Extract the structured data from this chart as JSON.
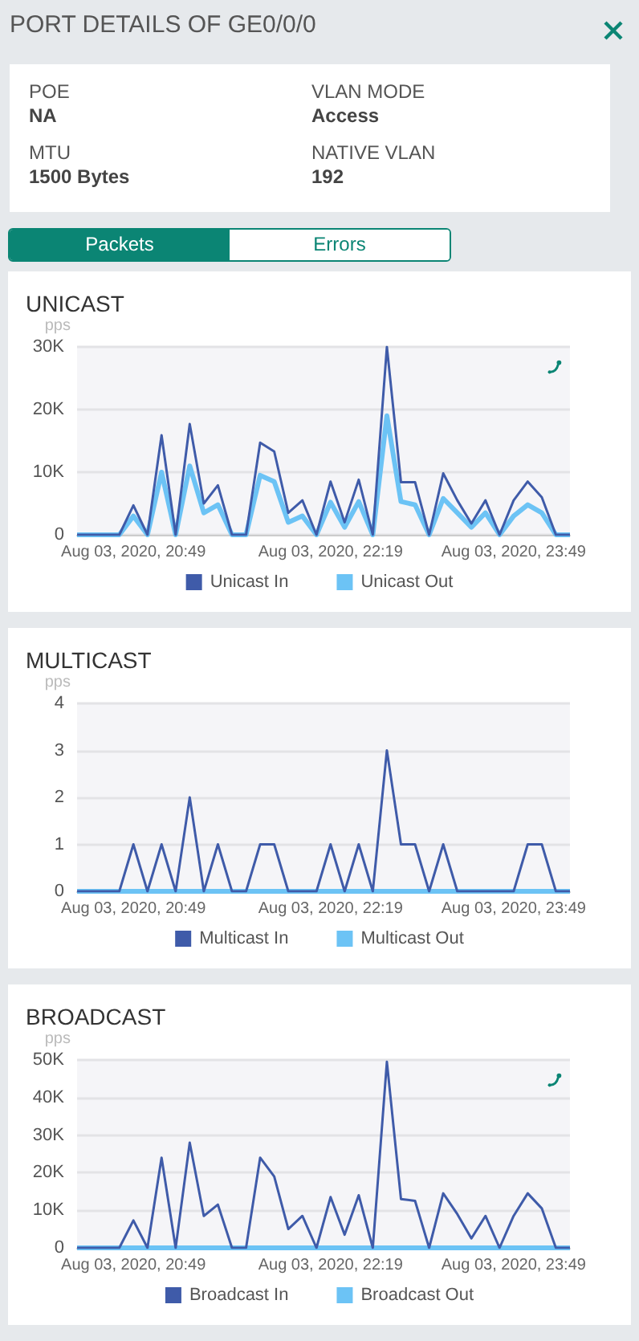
{
  "chart_data": [
    {
      "type": "other",
      "title": "PORT DETAILS OF GE0/0/0",
      "annotations": [
        "POE",
        "NA",
        "VLAN MODE",
        "Access",
        "MTU",
        "1500 Bytes",
        "NATIVE VLAN",
        "192",
        "Packets",
        "Errors"
      ]
    },
    {
      "type": "line",
      "title": "UNICAST",
      "ylabel": "pps",
      "categories": [
        null,
        null,
        null,
        null,
        "Aug 03, 2020, 20:49",
        null,
        null,
        null,
        null,
        null,
        null,
        null,
        null,
        null,
        null,
        null,
        null,
        null,
        "Aug 03, 2020, 22:19",
        null,
        null,
        null,
        null,
        null,
        null,
        null,
        null,
        null,
        null,
        null,
        null,
        "Aug 03, 2020, 23:49",
        null,
        null,
        null,
        null
      ],
      "ylim": [
        0,
        30000
      ],
      "yticks": [
        0,
        {
          "value": 10000,
          "label": "10K"
        },
        {
          "value": 20000,
          "label": "20K"
        },
        {
          "value": 30000,
          "label": "30K"
        }
      ],
      "grid": "y",
      "legend": "bottom",
      "marker": "none",
      "series": [
        {
          "name": "Unicast In",
          "color": "#3f5ba9",
          "values": [
            0,
            0,
            0,
            0,
            4700,
            0,
            15900,
            0,
            17700,
            5000,
            7900,
            0,
            0,
            14700,
            13300,
            3500,
            5500,
            0,
            8500,
            2000,
            8800,
            0,
            30000,
            8400,
            8400,
            0,
            9800,
            5500,
            1800,
            5500,
            0,
            5500,
            8500,
            6000,
            0,
            0
          ]
        },
        {
          "name": "Unicast Out",
          "color": "#6cc3f5",
          "values": [
            0,
            0,
            0,
            0,
            3000,
            0,
            10000,
            0,
            11000,
            3500,
            4800,
            0,
            0,
            9500,
            8500,
            2000,
            3000,
            0,
            5200,
            1200,
            5300,
            0,
            19000,
            5300,
            4800,
            0,
            5800,
            3500,
            1200,
            3500,
            0,
            3000,
            4800,
            3500,
            0,
            0
          ]
        }
      ]
    },
    {
      "type": "line",
      "title": "MULTICAST",
      "ylabel": "pps",
      "categories": [
        null,
        null,
        null,
        null,
        "Aug 03, 2020, 20:49",
        null,
        null,
        null,
        null,
        null,
        null,
        null,
        null,
        null,
        null,
        null,
        null,
        null,
        "Aug 03, 2020, 22:19",
        null,
        null,
        null,
        null,
        null,
        null,
        null,
        null,
        null,
        null,
        null,
        null,
        "Aug 03, 2020, 23:49",
        null,
        null,
        null,
        null
      ],
      "ylim": [
        0,
        4
      ],
      "yticks": [
        0,
        1,
        2,
        3,
        4
      ],
      "grid": "y",
      "legend": "bottom",
      "marker": "none",
      "series": [
        {
          "name": "Multicast In",
          "color": "#3f5ba9",
          "values": [
            0,
            0,
            0,
            0,
            1,
            0,
            1,
            0,
            2,
            0,
            1,
            0,
            0,
            1,
            1,
            0,
            0,
            0,
            1,
            0,
            1,
            0,
            3,
            1,
            1,
            0,
            1,
            0,
            0,
            0,
            0,
            0,
            1,
            1,
            0,
            0
          ]
        },
        {
          "name": "Multicast Out",
          "color": "#6cc3f5",
          "values": [
            0,
            0,
            0,
            0,
            0,
            0,
            0,
            0,
            0,
            0,
            0,
            0,
            0,
            0,
            0,
            0,
            0,
            0,
            0,
            0,
            0,
            0,
            0,
            0,
            0,
            0,
            0,
            0,
            0,
            0,
            0,
            0,
            0,
            0,
            0,
            0
          ]
        }
      ]
    },
    {
      "type": "line",
      "title": "BROADCAST",
      "ylabel": "pps",
      "categories": [
        null,
        null,
        null,
        null,
        "Aug 03, 2020, 20:49",
        null,
        null,
        null,
        null,
        null,
        null,
        null,
        null,
        null,
        null,
        null,
        null,
        null,
        "Aug 03, 2020, 22:19",
        null,
        null,
        null,
        null,
        null,
        null,
        null,
        null,
        null,
        null,
        null,
        null,
        "Aug 03, 2020, 23:49",
        null,
        null,
        null,
        null
      ],
      "ylim": [
        0,
        50000
      ],
      "yticks": [
        0,
        {
          "value": 10000,
          "label": "10K"
        },
        {
          "value": 20000,
          "label": "20K"
        },
        {
          "value": 30000,
          "label": "30K"
        },
        {
          "value": 40000,
          "label": "40K"
        },
        {
          "value": 50000,
          "label": "50K"
        }
      ],
      "grid": "y",
      "legend": "bottom",
      "marker": "none",
      "series": [
        {
          "name": "Broadcast In",
          "color": "#3f5ba9",
          "values": [
            0,
            0,
            0,
            0,
            7300,
            0,
            24000,
            0,
            28000,
            8500,
            11500,
            0,
            0,
            24000,
            19000,
            5000,
            8500,
            0,
            13500,
            3500,
            14000,
            0,
            49500,
            13000,
            12500,
            0,
            14500,
            9000,
            2500,
            8500,
            0,
            8500,
            14500,
            10500,
            0,
            0
          ]
        },
        {
          "name": "Broadcast Out",
          "color": "#6cc3f5",
          "values": [
            0,
            0,
            0,
            0,
            0,
            0,
            0,
            0,
            0,
            0,
            0,
            0,
            0,
            0,
            0,
            0,
            0,
            0,
            0,
            0,
            0,
            0,
            0,
            0,
            0,
            0,
            0,
            0,
            0,
            0,
            0,
            0,
            0,
            0,
            0,
            0
          ]
        }
      ]
    }
  ]
}
